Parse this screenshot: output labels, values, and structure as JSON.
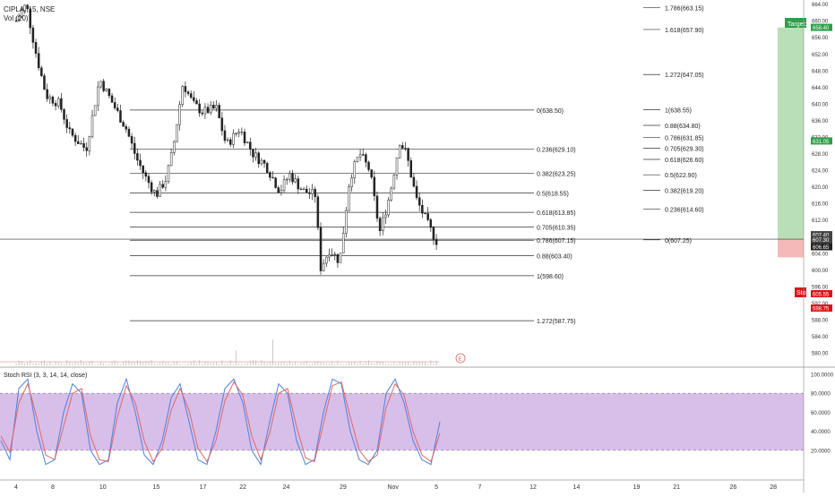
{
  "header": {
    "symbol_line": "CIPLA, 15, NSE",
    "volume_label": "Vol (20)"
  },
  "colors": {
    "candle": "#222222",
    "fib_line": "#333333",
    "target_fill": "#b9dfb6",
    "stop_fill": "#f5b9b9",
    "target_badge": "#2e9e4a",
    "stop_badge": "#e0101a",
    "stoch_bg": "#d8bfea",
    "stoch_k": "#4f7fe0",
    "stoch_d": "#e06666",
    "price_line": "#333333"
  },
  "chart_data": [
    {
      "type": "candlestick",
      "title": "CIPLA, 15, NSE",
      "ylim": [
        577,
        665
      ],
      "y_tick_labels": [
        "664.00",
        "660.00",
        "656.00",
        "652.00",
        "648.00",
        "644.00",
        "640.00",
        "636.00",
        "632.00",
        "628.00",
        "624.00",
        "620.00",
        "616.00",
        "612.00",
        "608.00",
        "604.00",
        "600.00",
        "596.00",
        "592.00",
        "588.00",
        "584.00",
        "580.00"
      ],
      "x_tick_labels": [
        "4",
        "8",
        "10",
        "15",
        "17",
        "22",
        "24",
        "29",
        "Nov",
        "5",
        "7",
        "12",
        "14",
        "19",
        "21",
        "26",
        "28"
      ],
      "x_tick_values": [
        0,
        1.1,
        2.6,
        4.2,
        5.6,
        6.8,
        8.1,
        9.8,
        11.3,
        12.6,
        13.9,
        15.5,
        16.8,
        18.6,
        19.8,
        21.5,
        22.7
      ],
      "price_path": [
        [
          0,
          660
        ],
        [
          0.3,
          664
        ],
        [
          0.6,
          652
        ],
        [
          0.9,
          642
        ],
        [
          1.3,
          640
        ],
        [
          1.6,
          633
        ],
        [
          2.1,
          629
        ],
        [
          2.5,
          646
        ],
        [
          2.9,
          640
        ],
        [
          3.3,
          634
        ],
        [
          3.6,
          627
        ],
        [
          3.9,
          622
        ],
        [
          4.2,
          618
        ],
        [
          4.5,
          622
        ],
        [
          4.7,
          629
        ],
        [
          5.0,
          645
        ],
        [
          5.3,
          640
        ],
        [
          5.6,
          638
        ],
        [
          6.0,
          639
        ],
        [
          6.3,
          630
        ],
        [
          6.7,
          634
        ],
        [
          7.1,
          628
        ],
        [
          7.5,
          625
        ],
        [
          7.9,
          619
        ],
        [
          8.2,
          623
        ],
        [
          8.6,
          619
        ],
        [
          9.0,
          618
        ],
        [
          9.1,
          600
        ],
        [
          9.4,
          605
        ],
        [
          9.7,
          602
        ],
        [
          10.0,
          622
        ],
        [
          10.3,
          628
        ],
        [
          10.6,
          624
        ],
        [
          10.9,
          609
        ],
        [
          11.2,
          618
        ],
        [
          11.5,
          631
        ],
        [
          11.7,
          628
        ],
        [
          12.0,
          617
        ],
        [
          12.4,
          610
        ],
        [
          12.6,
          607
        ]
      ],
      "fib_retracement": [
        {
          "label": "0(638.50)",
          "price": 638.5
        },
        {
          "label": "0.236(629.10)",
          "price": 629.1
        },
        {
          "label": "0.382(623.25)",
          "price": 623.25
        },
        {
          "label": "0.5(618.55)",
          "price": 618.55
        },
        {
          "label": "0.618(613.85)",
          "price": 613.85
        },
        {
          "label": "0.705(610.35)",
          "price": 610.35
        },
        {
          "label": "0.786(607.15)",
          "price": 607.15
        },
        {
          "label": "0.88(603.40)",
          "price": 603.4
        },
        {
          "label": "1(598.60)",
          "price": 598.6
        },
        {
          "label": "1.272(587.75)",
          "price": 587.75
        }
      ],
      "fib_extension": [
        {
          "label": "1.786(663.15)",
          "price": 663.15
        },
        {
          "label": "1.618(657.90)",
          "price": 657.9
        },
        {
          "label": "1.272(647.05)",
          "price": 647.05
        },
        {
          "label": "1(638.55)",
          "price": 638.55
        },
        {
          "label": "0.88(634.80)",
          "price": 634.8
        },
        {
          "label": "0.786(631.85)",
          "price": 631.85
        },
        {
          "label": "0.705(629.30)",
          "price": 629.3
        },
        {
          "label": "0.618(626.60)",
          "price": 626.6
        },
        {
          "label": "0.5(622.90)",
          "price": 622.9
        },
        {
          "label": "0.382(619.20)",
          "price": 619.2
        },
        {
          "label": "0.236(614.60)",
          "price": 614.6
        },
        {
          "label": "0(607.25)",
          "price": 607.25
        }
      ],
      "position": {
        "entry": 607.4,
        "target": 658.4,
        "stop": 603.0,
        "target_label": "Target: 5",
        "stop_label": "Stop:",
        "target_badge": "658.40",
        "mid_badge": "631.05",
        "stop_badges": [
          "605.55",
          "598.75"
        ]
      },
      "price_badges": [
        "607.40",
        "607.30",
        "606.65"
      ],
      "event_marker": "E"
    },
    {
      "type": "line",
      "title": "Stoch RSI (3, 3, 14, 14, close)",
      "ylim": [
        0,
        100
      ],
      "y_tick_labels": [
        "100.0000",
        "80.0000",
        "60.0000",
        "40.0000",
        "20.0000"
      ],
      "band_levels": [
        80,
        20
      ],
      "series": [
        {
          "name": "K",
          "values": [
            30,
            10,
            85,
            95,
            40,
            5,
            10,
            60,
            90,
            80,
            20,
            5,
            10,
            70,
            95,
            60,
            15,
            5,
            30,
            75,
            90,
            50,
            10,
            5,
            40,
            85,
            95,
            70,
            20,
            5,
            50,
            90,
            80,
            30,
            5,
            10,
            60,
            95,
            90,
            40,
            10,
            5,
            20,
            80,
            95,
            70,
            30,
            10,
            5,
            50
          ]
        },
        {
          "name": "D",
          "values": [
            35,
            18,
            70,
            90,
            55,
            15,
            10,
            45,
            80,
            85,
            35,
            10,
            8,
            55,
            88,
            70,
            30,
            8,
            22,
            62,
            85,
            62,
            22,
            8,
            30,
            72,
            92,
            78,
            35,
            10,
            38,
            80,
            85,
            45,
            12,
            8,
            48,
            88,
            92,
            55,
            20,
            8,
            15,
            65,
            90,
            78,
            40,
            15,
            8,
            38
          ]
        }
      ]
    }
  ]
}
